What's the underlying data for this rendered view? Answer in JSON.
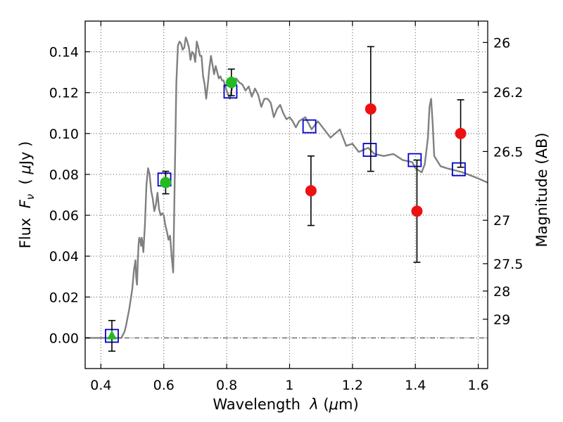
{
  "chart_data": {
    "type": "scatter",
    "xlabel": "Wavelength  λ (μm)",
    "xlabel_parts": {
      "prefix": "Wavelength  ",
      "symbol": "λ",
      "unit_open": " (",
      "unit_mu": "μ",
      "unit_rest": "m)"
    },
    "ylabel": "Flux  Fν  ( μJy )",
    "ylabel_parts": {
      "prefix": "Flux  ",
      "symbol": "F",
      "subscript": "ν",
      "unit_open": "  ( ",
      "unit_mu": "μ",
      "unit_rest": "Jy )"
    },
    "y2label": "Magnitude (AB)",
    "xlim": [
      0.35,
      1.63
    ],
    "ylim": [
      -0.015,
      0.155
    ],
    "grid": true,
    "x_ticks": [
      0.4,
      0.6,
      0.8,
      1.0,
      1.2,
      1.4,
      1.6
    ],
    "x_tick_labels": [
      "0.4",
      "0.6",
      "0.8",
      "1",
      "1.2",
      "1.4",
      "1.6"
    ],
    "y_ticks": [
      0.0,
      0.02,
      0.04,
      0.06,
      0.08,
      0.1,
      0.12,
      0.14
    ],
    "y_tick_labels": [
      "0.00",
      "0.02",
      "0.04",
      "0.06",
      "0.08",
      "0.10",
      "0.12",
      "0.14"
    ],
    "y2_ticks": [
      26,
      26.2,
      26.5,
      27,
      27.5,
      28,
      29
    ],
    "y2_tick_labels": [
      "26",
      "26.2",
      "26.5",
      "27",
      "27.5",
      "28",
      "29"
    ],
    "colors": {
      "model": "#808080",
      "model_band": "#0000cc",
      "detection": "#22bb22",
      "observed": "#ee1111",
      "errorbar": "#000000",
      "zero_line": "#000000",
      "grid": "#555555"
    },
    "series": [
      {
        "name": "model SED",
        "kind": "line",
        "x": [
          0.35,
          0.4,
          0.44,
          0.455,
          0.465,
          0.475,
          0.48,
          0.49,
          0.5,
          0.505,
          0.51,
          0.512,
          0.515,
          0.518,
          0.52,
          0.522,
          0.525,
          0.528,
          0.53,
          0.532,
          0.535,
          0.54,
          0.545,
          0.55,
          0.555,
          0.56,
          0.565,
          0.57,
          0.575,
          0.58,
          0.585,
          0.59,
          0.595,
          0.6,
          0.605,
          0.61,
          0.615,
          0.62,
          0.625,
          0.63,
          0.635,
          0.64,
          0.645,
          0.65,
          0.655,
          0.66,
          0.665,
          0.67,
          0.675,
          0.68,
          0.685,
          0.69,
          0.695,
          0.7,
          0.705,
          0.71,
          0.715,
          0.72,
          0.725,
          0.73,
          0.735,
          0.74,
          0.745,
          0.75,
          0.76,
          0.765,
          0.77,
          0.775,
          0.78,
          0.785,
          0.79,
          0.8,
          0.81,
          0.815,
          0.82,
          0.83,
          0.84,
          0.85,
          0.86,
          0.87,
          0.88,
          0.89,
          0.9,
          0.91,
          0.92,
          0.93,
          0.94,
          0.95,
          0.96,
          0.97,
          0.98,
          0.99,
          1.0,
          1.01,
          1.02,
          1.03,
          1.05,
          1.07,
          1.09,
          1.1,
          1.13,
          1.16,
          1.18,
          1.2,
          1.22,
          1.25,
          1.27,
          1.3,
          1.33,
          1.36,
          1.39,
          1.4,
          1.42,
          1.43,
          1.44,
          1.445,
          1.45,
          1.455,
          1.46,
          1.48,
          1.5,
          1.55,
          1.6,
          1.63
        ],
        "y": [
          0.0,
          0.0,
          0.0,
          0.0,
          0.0,
          0.003,
          0.006,
          0.014,
          0.024,
          0.033,
          0.038,
          0.03,
          0.026,
          0.04,
          0.046,
          0.049,
          0.048,
          0.045,
          0.049,
          0.047,
          0.042,
          0.055,
          0.075,
          0.083,
          0.08,
          0.072,
          0.068,
          0.062,
          0.065,
          0.071,
          0.063,
          0.06,
          0.061,
          0.06,
          0.055,
          0.052,
          0.048,
          0.05,
          0.04,
          0.032,
          0.08,
          0.125,
          0.143,
          0.145,
          0.144,
          0.141,
          0.142,
          0.147,
          0.145,
          0.142,
          0.136,
          0.14,
          0.139,
          0.135,
          0.145,
          0.142,
          0.138,
          0.138,
          0.128,
          0.124,
          0.117,
          0.124,
          0.132,
          0.138,
          0.129,
          0.133,
          0.13,
          0.127,
          0.128,
          0.126,
          0.126,
          0.121,
          0.117,
          0.121,
          0.123,
          0.127,
          0.125,
          0.124,
          0.121,
          0.123,
          0.118,
          0.122,
          0.119,
          0.113,
          0.117,
          0.117,
          0.115,
          0.108,
          0.112,
          0.114,
          0.11,
          0.107,
          0.108,
          0.106,
          0.103,
          0.106,
          0.108,
          0.102,
          0.106,
          0.104,
          0.098,
          0.102,
          0.094,
          0.095,
          0.091,
          0.093,
          0.09,
          0.089,
          0.09,
          0.087,
          0.086,
          0.083,
          0.081,
          0.085,
          0.098,
          0.113,
          0.117,
          0.105,
          0.089,
          0.084,
          0.083,
          0.081,
          0.078,
          0.076
        ]
      },
      {
        "name": "model band fluxes",
        "kind": "open-square",
        "x": [
          0.435,
          0.602,
          0.812,
          1.063,
          1.255,
          1.398,
          1.538
        ],
        "y": [
          0.001,
          0.0775,
          0.1205,
          0.1035,
          0.092,
          0.087,
          0.0825
        ]
      },
      {
        "name": "photometry",
        "kind": "points",
        "points": [
          {
            "x": 0.435,
            "y": 0.001,
            "err": 0.0075,
            "marker": "triangle",
            "color": "detection"
          },
          {
            "x": 0.606,
            "y": 0.076,
            "err": 0.0055,
            "marker": "circle",
            "color": "detection"
          },
          {
            "x": 0.815,
            "y": 0.125,
            "err": 0.0065,
            "marker": "circle",
            "color": "detection"
          },
          {
            "x": 1.068,
            "y": 0.072,
            "err": 0.017,
            "marker": "circle",
            "color": "observed"
          },
          {
            "x": 1.258,
            "y": 0.112,
            "err": 0.0305,
            "marker": "circle",
            "color": "observed"
          },
          {
            "x": 1.405,
            "y": 0.062,
            "err": 0.025,
            "marker": "circle",
            "color": "observed"
          },
          {
            "x": 1.544,
            "y": 0.1,
            "err": 0.0165,
            "marker": "circle",
            "color": "observed"
          }
        ]
      }
    ]
  }
}
